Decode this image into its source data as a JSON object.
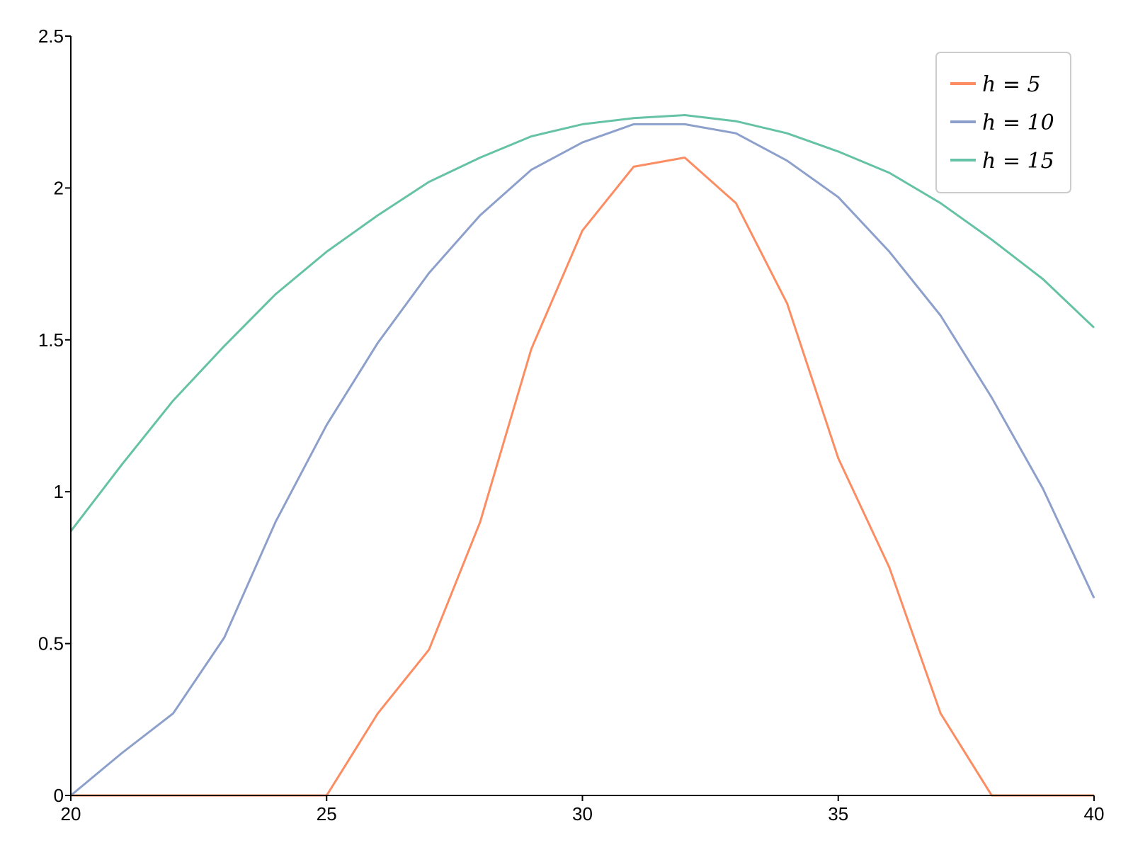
{
  "chart_data": {
    "type": "line",
    "title": "",
    "xlabel": "",
    "ylabel": "",
    "xlim": [
      20,
      40
    ],
    "ylim": [
      0,
      2.5
    ],
    "x_ticks": [
      20,
      25,
      30,
      35,
      40
    ],
    "y_ticks": [
      0,
      0.5,
      1,
      1.5,
      2,
      2.5
    ],
    "x_tick_labels": [
      "20",
      "25",
      "30",
      "35",
      "40"
    ],
    "y_tick_labels": [
      "0",
      "0.5",
      "1",
      "1.5",
      "2",
      "2.5"
    ],
    "grid": false,
    "legend_position": "top-right",
    "x": [
      20,
      21,
      22,
      23,
      24,
      25,
      26,
      27,
      28,
      29,
      30,
      31,
      32,
      33,
      34,
      35,
      36,
      37,
      38,
      39,
      40
    ],
    "series": [
      {
        "name": "h = 5",
        "color": "#fc8d62",
        "values": [
          0,
          0,
          0,
          0,
          0,
          0,
          0.27,
          0.48,
          0.9,
          1.47,
          1.86,
          2.07,
          2.1,
          1.95,
          1.62,
          1.11,
          0.75,
          0.27,
          0,
          0,
          0
        ]
      },
      {
        "name": "h = 10",
        "color": "#8da0cb",
        "values": [
          0,
          0.14,
          0.27,
          0.52,
          0.9,
          1.22,
          1.49,
          1.72,
          1.91,
          2.06,
          2.15,
          2.21,
          2.21,
          2.18,
          2.09,
          1.97,
          1.79,
          1.58,
          1.31,
          1.01,
          0.65
        ]
      },
      {
        "name": "h = 15",
        "color": "#66c2a5",
        "values": [
          0.87,
          1.09,
          1.3,
          1.48,
          1.65,
          1.79,
          1.91,
          2.02,
          2.1,
          2.17,
          2.21,
          2.23,
          2.24,
          2.22,
          2.18,
          2.12,
          2.05,
          1.95,
          1.83,
          1.7,
          1.54
        ]
      }
    ]
  }
}
